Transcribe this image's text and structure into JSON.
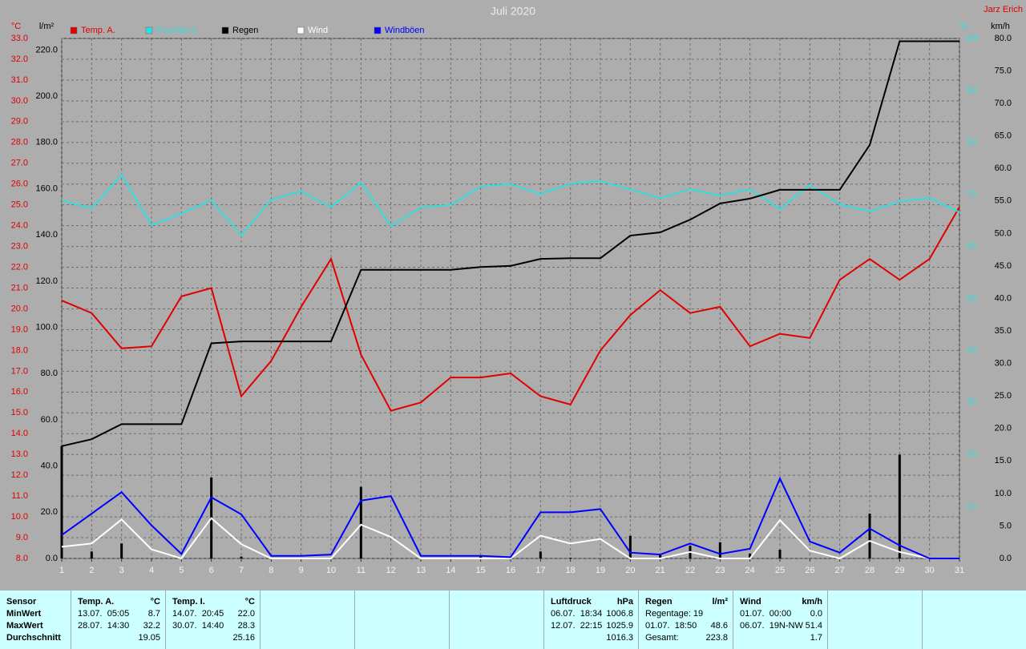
{
  "chart_data": {
    "type": "line",
    "title": "Juli 2020",
    "author": "Jarz Erich",
    "x": [
      1,
      2,
      3,
      4,
      5,
      6,
      7,
      8,
      9,
      10,
      11,
      12,
      13,
      14,
      15,
      16,
      17,
      18,
      19,
      20,
      21,
      22,
      23,
      24,
      25,
      26,
      27,
      28,
      29,
      30,
      31
    ],
    "xlim": [
      1,
      31
    ],
    "xticks": [
      1,
      2,
      3,
      4,
      5,
      6,
      7,
      8,
      9,
      10,
      11,
      12,
      13,
      14,
      15,
      16,
      17,
      18,
      19,
      20,
      21,
      22,
      23,
      24,
      25,
      26,
      27,
      28,
      29,
      30,
      31
    ],
    "grid": true,
    "y_label": "°C",
    "ylim": [
      8,
      33
    ],
    "yticks": [
      {
        "value": 8,
        "label": "8.0"
      },
      {
        "value": 9,
        "label": "9.0"
      },
      {
        "value": 10,
        "label": "10.0"
      },
      {
        "value": 11,
        "label": "11.0"
      },
      {
        "value": 12,
        "label": "12.0"
      },
      {
        "value": 13,
        "label": "13.0"
      },
      {
        "value": 14,
        "label": "14.0"
      },
      {
        "value": 15,
        "label": "15.0"
      },
      {
        "value": 16,
        "label": "16.0"
      },
      {
        "value": 17,
        "label": "17.0"
      },
      {
        "value": 18,
        "label": "18.0"
      },
      {
        "value": 19,
        "label": "19.0"
      },
      {
        "value": 20,
        "label": "20.0"
      },
      {
        "value": 21,
        "label": "21.0"
      },
      {
        "value": 22,
        "label": "22.0"
      },
      {
        "value": 23,
        "label": "23.0"
      },
      {
        "value": 24,
        "label": "24.0"
      },
      {
        "value": 25,
        "label": "25.0"
      },
      {
        "value": 26,
        "label": "26.0"
      },
      {
        "value": 27,
        "label": "27.0"
      },
      {
        "value": 28,
        "label": "28.0"
      },
      {
        "value": 29,
        "label": "29.0"
      },
      {
        "value": 30,
        "label": "30.0"
      },
      {
        "value": 31,
        "label": "31.0"
      },
      {
        "value": 32,
        "label": "32.0"
      },
      {
        "value": 33,
        "label": "33.0"
      }
    ],
    "y2_label": "l/m²",
    "y2lim": [
      0,
      225
    ],
    "y2ticks": [
      {
        "value": 0,
        "label": "0.0"
      },
      {
        "value": 20,
        "label": "20.0"
      },
      {
        "value": 40,
        "label": "40.0"
      },
      {
        "value": 60,
        "label": "60.0"
      },
      {
        "value": 80,
        "label": "80.0"
      },
      {
        "value": 100,
        "label": "100.0"
      },
      {
        "value": 120,
        "label": "120.0"
      },
      {
        "value": 140,
        "label": "140.0"
      },
      {
        "value": 160,
        "label": "160.0"
      },
      {
        "value": 180,
        "label": "180.0"
      },
      {
        "value": 200,
        "label": "200.0"
      },
      {
        "value": 220,
        "label": "220.0"
      }
    ],
    "y3_label": "%",
    "y3lim": [
      0,
      100
    ],
    "y3ticks": [
      10,
      20,
      30,
      40,
      50,
      60,
      70,
      80,
      90,
      100
    ],
    "y4_label": "km/h",
    "y4lim": [
      0,
      80
    ],
    "y4ticks": [
      {
        "value": 0,
        "label": "0.0"
      },
      {
        "value": 5,
        "label": "5.0"
      },
      {
        "value": 10,
        "label": "10.0"
      },
      {
        "value": 15,
        "label": "15.0"
      },
      {
        "value": 20,
        "label": "20.0"
      },
      {
        "value": 25,
        "label": "25.0"
      },
      {
        "value": 30,
        "label": "30.0"
      },
      {
        "value": 35,
        "label": "35.0"
      },
      {
        "value": 40,
        "label": "40.0"
      },
      {
        "value": 45,
        "label": "45.0"
      },
      {
        "value": 50,
        "label": "50.0"
      },
      {
        "value": 55,
        "label": "55.0"
      },
      {
        "value": 60,
        "label": "60.0"
      },
      {
        "value": 65,
        "label": "65.0"
      },
      {
        "value": 70,
        "label": "70.0"
      },
      {
        "value": 75,
        "label": "75.0"
      },
      {
        "value": 80,
        "label": "80.0"
      }
    ],
    "series": [
      {
        "name": "Temp. A.",
        "color": "#e00000",
        "axis": "y",
        "values": [
          20.4,
          19.8,
          18.1,
          18.2,
          20.6,
          21.0,
          15.8,
          17.5,
          20.1,
          22.4,
          17.8,
          15.1,
          15.5,
          16.7,
          16.7,
          16.9,
          15.8,
          15.4,
          18.0,
          19.7,
          20.9,
          19.8,
          20.1,
          18.2,
          18.8,
          18.6,
          21.4,
          22.4,
          21.4,
          22.4,
          24.9
        ]
      },
      {
        "name": "Feuchte A.",
        "color": "#33dddd",
        "axis": "y3",
        "values": [
          68.9,
          67.3,
          73.8,
          64.1,
          66.3,
          68.9,
          62.1,
          69.0,
          70.6,
          67.6,
          72.3,
          63.9,
          67.5,
          68.0,
          71.5,
          72.0,
          70.1,
          72.1,
          72.6,
          71.0,
          69.3,
          71.0,
          69.8,
          71.0,
          67.2,
          71.8,
          68.1,
          66.7,
          68.7,
          69.3,
          66.6
        ]
      },
      {
        "name": "Regen",
        "color": "#000000",
        "axis": "y2",
        "values": [
          48.6,
          51.6,
          58.1,
          58.1,
          58.1,
          93.1,
          93.9,
          93.9,
          93.9,
          93.9,
          124.9,
          124.9,
          124.9,
          124.9,
          126.1,
          126.6,
          129.6,
          129.9,
          129.9,
          139.7,
          141.1,
          146.6,
          153.6,
          155.7,
          159.5,
          159.5,
          159.5,
          178.9,
          223.8,
          223.8,
          223.8
        ]
      },
      {
        "name": "Wind",
        "color": "#ffffff",
        "axis": "y4",
        "values": [
          1.8,
          2.3,
          6.0,
          1.4,
          0,
          6.2,
          2.2,
          0,
          0,
          0,
          5.2,
          3.3,
          0,
          0,
          0,
          0,
          3.5,
          2.3,
          3.0,
          0,
          0,
          1.0,
          0,
          0,
          5.9,
          1.2,
          0,
          2.7,
          1.0,
          0,
          0
        ]
      },
      {
        "name": "Windböen",
        "color": "#0000ff",
        "axis": "y4",
        "values": [
          3.6,
          6.9,
          10.2,
          5.1,
          0.7,
          9.4,
          6.8,
          0.4,
          0.4,
          0.6,
          8.9,
          9.6,
          0.4,
          0.4,
          0.4,
          0.2,
          7.1,
          7.1,
          7.6,
          0.9,
          0.6,
          2.3,
          0.7,
          1.5,
          12.3,
          2.6,
          0.9,
          4.6,
          2.0,
          0,
          0
        ]
      },
      {
        "type": "bar",
        "color": "#000000",
        "axis": "y2",
        "values": [
          48.6,
          3.0,
          6.5,
          0,
          0,
          35.0,
          0.8,
          0,
          0,
          0,
          31.0,
          0,
          0,
          0,
          1.2,
          0.5,
          3.0,
          0.3,
          0,
          9.8,
          1.4,
          5.5,
          7.0,
          2.1,
          3.8,
          0,
          0,
          19.4,
          44.9,
          0,
          0
        ]
      }
    ]
  },
  "table": {
    "columns": [
      {
        "header": "Sensor",
        "rows": [
          {
            "left": "MinWert"
          },
          {
            "left": "MaxWert"
          },
          {
            "left": "Durchschnitt"
          }
        ]
      },
      {
        "header": "Temp. A.",
        "unit": "°C",
        "rows": [
          {
            "left": "13.07.  05:05",
            "right": "8.7"
          },
          {
            "left": "28.07.  14:30",
            "right": "32.2"
          },
          {
            "right": "19.05"
          }
        ]
      },
      {
        "header": "Temp. I.",
        "unit": "°C",
        "rows": [
          {
            "left": "14.07.  20:45",
            "right": "22.0"
          },
          {
            "left": "30.07.  14:40",
            "right": "28.3"
          },
          {
            "right": "25.16"
          }
        ]
      },
      {
        "header": "Luftdruck",
        "unit": "hPa",
        "rows": [
          {
            "left": "06.07.  18:34",
            "right": "1006.8"
          },
          {
            "left": "12.07.  22:15",
            "right": "1025.9"
          },
          {
            "right": "1016.3"
          }
        ]
      },
      {
        "header": "Regen",
        "unit": "l/m²",
        "rows": [
          {
            "left": "Regentage: 19"
          },
          {
            "left": "01.07.  18:50",
            "right": "48.6"
          },
          {
            "left": "Gesamt:",
            "right": "223.8"
          }
        ]
      },
      {
        "header": "Wind",
        "unit": "km/h",
        "rows": [
          {
            "left": "01.07.  00:00",
            "right": "0.0"
          },
          {
            "left": "06.07.  19N-NW",
            "right": "51.4"
          },
          {
            "right": "1.7"
          }
        ]
      }
    ]
  }
}
